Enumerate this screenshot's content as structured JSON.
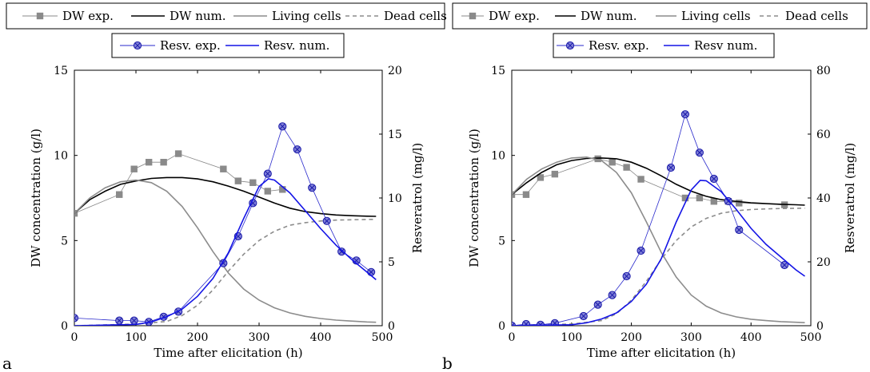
{
  "chart_data": [
    {
      "type": "line",
      "panel_label": "a",
      "xlabel": "Time after elicitation (h)",
      "ylabel": "DW concentration (g/l)",
      "ylabel_right": "Resveratrol (mg/l)",
      "xlim": [
        0,
        500
      ],
      "ylim": [
        0,
        15
      ],
      "ylim_right": [
        0,
        20
      ],
      "xticks": [
        0,
        100,
        200,
        300,
        400,
        500
      ],
      "yticks": [
        0,
        5,
        10,
        15
      ],
      "yticks_right": [
        0,
        5,
        10,
        15,
        20
      ],
      "grid": false,
      "legend": [
        {
          "name": "DW exp.",
          "axis": "left",
          "style": "exp",
          "color": "#888888",
          "marker": "square",
          "x": [
            0,
            73,
            97,
            121,
            145,
            169,
            242,
            266,
            290,
            314,
            338
          ],
          "y": [
            6.6,
            7.7,
            9.2,
            9.6,
            9.6,
            10.1,
            9.2,
            8.5,
            8.4,
            7.9,
            8.0
          ]
        },
        {
          "name": "DW num.",
          "axis": "left",
          "style": "solid",
          "color": "#000000",
          "x": [
            0,
            25,
            50,
            75,
            100,
            125,
            150,
            175,
            200,
            225,
            250,
            275,
            300,
            325,
            350,
            375,
            400,
            425,
            450,
            475,
            490
          ],
          "y": [
            6.6,
            7.4,
            7.9,
            8.3,
            8.5,
            8.65,
            8.7,
            8.7,
            8.62,
            8.45,
            8.2,
            7.9,
            7.55,
            7.2,
            6.9,
            6.7,
            6.58,
            6.5,
            6.46,
            6.43,
            6.42
          ]
        },
        {
          "name": "Living cells",
          "axis": "left",
          "style": "solid",
          "color": "#8c8c8c",
          "x": [
            0,
            25,
            50,
            75,
            100,
            125,
            150,
            175,
            200,
            225,
            250,
            275,
            300,
            325,
            350,
            375,
            400,
            425,
            450,
            475,
            490
          ],
          "y": [
            6.6,
            7.5,
            8.1,
            8.45,
            8.55,
            8.4,
            7.9,
            7.0,
            5.75,
            4.35,
            3.1,
            2.15,
            1.5,
            1.05,
            0.75,
            0.55,
            0.42,
            0.33,
            0.27,
            0.22,
            0.2
          ]
        },
        {
          "name": "Dead cells",
          "axis": "left",
          "style": "dashed",
          "color": "#8c8c8c",
          "x": [
            0,
            100,
            150,
            175,
            200,
            225,
            250,
            275,
            300,
            325,
            350,
            375,
            400,
            425,
            450,
            490
          ],
          "y": [
            0,
            0.1,
            0.25,
            0.6,
            1.2,
            2.1,
            3.2,
            4.2,
            5.0,
            5.55,
            5.9,
            6.05,
            6.15,
            6.2,
            6.22,
            6.25
          ]
        },
        {
          "name": "Resv. exp.",
          "axis": "right",
          "style": "exp",
          "color": "#2a2acc",
          "marker": "circle-x",
          "x": [
            0,
            73,
            97,
            121,
            145,
            169,
            242,
            266,
            290,
            314,
            338,
            362,
            386,
            410,
            434,
            458,
            482
          ],
          "y": [
            0.6,
            0.4,
            0.4,
            0.3,
            0.7,
            1.1,
            4.9,
            7.0,
            9.6,
            11.9,
            15.6,
            13.8,
            10.8,
            8.2,
            5.8,
            5.1,
            4.2
          ]
        },
        {
          "name": "Resv. num.",
          "axis": "right",
          "style": "solid",
          "color": "#1414e6",
          "x": [
            0,
            100,
            125,
            150,
            175,
            200,
            225,
            250,
            275,
            300,
            315,
            325,
            350,
            375,
            400,
            425,
            450,
            475,
            490
          ],
          "y": [
            0,
            0.1,
            0.3,
            0.7,
            1.3,
            2.3,
            3.7,
            5.7,
            8.4,
            10.9,
            11.5,
            11.4,
            10.4,
            9.0,
            7.6,
            6.3,
            5.2,
            4.2,
            3.6
          ]
        }
      ]
    },
    {
      "type": "line",
      "panel_label": "b",
      "xlabel": "Time after elicitation (h)",
      "ylabel": "DW concentration (g/l)",
      "ylabel_right": "Resveratrol (mg/l)",
      "xlim": [
        0,
        500
      ],
      "ylim": [
        0,
        15
      ],
      "ylim_right": [
        0,
        80
      ],
      "xticks": [
        0,
        100,
        200,
        300,
        400,
        500
      ],
      "yticks": [
        0,
        5,
        10,
        15
      ],
      "yticks_right": [
        0,
        20,
        40,
        60,
        80
      ],
      "grid": false,
      "legend": [
        {
          "name": "DW exp.",
          "axis": "left",
          "style": "exp",
          "color": "#888888",
          "marker": "square",
          "x": [
            0,
            24,
            48,
            72,
            144,
            168,
            192,
            216,
            290,
            314,
            338,
            362,
            380,
            456
          ],
          "y": [
            7.7,
            7.7,
            8.7,
            8.9,
            9.8,
            9.6,
            9.3,
            8.6,
            7.5,
            7.5,
            7.3,
            7.3,
            7.2,
            7.1
          ]
        },
        {
          "name": "DW num.",
          "axis": "left",
          "style": "solid",
          "color": "#000000",
          "x": [
            0,
            25,
            50,
            75,
            100,
            125,
            150,
            175,
            200,
            225,
            250,
            275,
            300,
            325,
            350,
            375,
            400,
            425,
            450,
            475,
            490
          ],
          "y": [
            7.7,
            8.4,
            9.0,
            9.45,
            9.7,
            9.82,
            9.85,
            9.8,
            9.6,
            9.25,
            8.8,
            8.3,
            7.9,
            7.6,
            7.4,
            7.3,
            7.22,
            7.17,
            7.13,
            7.1,
            7.08
          ]
        },
        {
          "name": "Living cells",
          "axis": "left",
          "style": "solid",
          "color": "#8c8c8c",
          "x": [
            0,
            25,
            50,
            75,
            100,
            125,
            150,
            175,
            200,
            225,
            250,
            275,
            300,
            325,
            350,
            375,
            400,
            425,
            450,
            475,
            490
          ],
          "y": [
            7.7,
            8.6,
            9.2,
            9.6,
            9.85,
            9.9,
            9.7,
            9.0,
            7.8,
            6.1,
            4.3,
            2.85,
            1.8,
            1.15,
            0.75,
            0.52,
            0.38,
            0.3,
            0.24,
            0.2,
            0.18
          ]
        },
        {
          "name": "Dead cells",
          "axis": "left",
          "style": "dashed",
          "color": "#8c8c8c",
          "x": [
            0,
            100,
            150,
            175,
            200,
            225,
            250,
            275,
            300,
            325,
            350,
            375,
            400,
            425,
            450,
            490
          ],
          "y": [
            0,
            0.1,
            0.3,
            0.7,
            1.5,
            2.6,
            3.9,
            5.0,
            5.8,
            6.3,
            6.6,
            6.75,
            6.82,
            6.86,
            6.88,
            6.9
          ]
        },
        {
          "name": "Resv. exp.",
          "axis": "right",
          "style": "exp",
          "color": "#2a2acc",
          "marker": "circle-x",
          "x": [
            0,
            24,
            48,
            72,
            120,
            144,
            168,
            192,
            216,
            266,
            290,
            314,
            338,
            362,
            380,
            456
          ],
          "y": [
            0,
            0.5,
            0.3,
            0.8,
            3.0,
            6.6,
            9.6,
            15.5,
            23.5,
            49.5,
            66.2,
            54.2,
            46.0,
            39.0,
            30.0,
            19.0
          ]
        },
        {
          "name": "Resv num.",
          "axis": "right",
          "style": "solid",
          "color": "#1414e6",
          "x": [
            0,
            100,
            125,
            150,
            175,
            200,
            225,
            250,
            275,
            300,
            315,
            325,
            350,
            375,
            400,
            425,
            450,
            475,
            490
          ],
          "y": [
            0,
            0.3,
            0.9,
            2.1,
            4.0,
            7.6,
            13.0,
            21.0,
            32.5,
            42.5,
            45.5,
            45.4,
            42.0,
            36.5,
            30.5,
            25.5,
            21.5,
            17.5,
            15.5
          ]
        }
      ]
    }
  ]
}
